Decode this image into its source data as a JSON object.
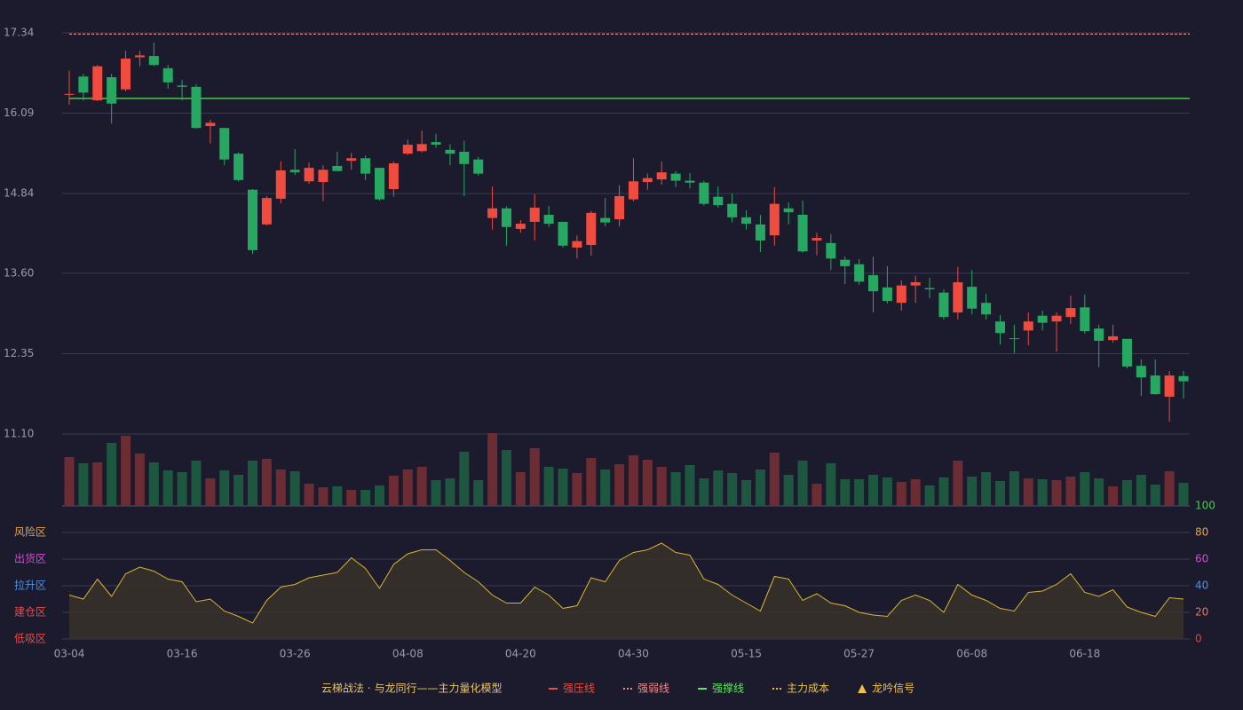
{
  "chart_data": {
    "type": "candlestick",
    "categories": [
      "03-04",
      null,
      null,
      null,
      null,
      null,
      null,
      null,
      "03-16",
      null,
      null,
      null,
      null,
      null,
      null,
      null,
      "03-26",
      null,
      null,
      null,
      null,
      null,
      null,
      null,
      "04-08",
      null,
      null,
      null,
      null,
      null,
      null,
      null,
      "04-20",
      null,
      null,
      null,
      null,
      null,
      null,
      null,
      "04-30",
      null,
      null,
      null,
      null,
      null,
      null,
      null,
      "05-15",
      null,
      null,
      null,
      null,
      null,
      null,
      null,
      "05-27",
      null,
      null,
      null,
      null,
      null,
      null,
      null,
      "06-08",
      null,
      null,
      null,
      null,
      null,
      null,
      null,
      "06-18",
      null,
      null,
      null,
      null,
      null,
      null,
      null
    ],
    "open": [
      16.38,
      16.66,
      16.29,
      16.65,
      16.46,
      16.96,
      16.98,
      16.79,
      16.52,
      16.5,
      15.89,
      15.86,
      15.46,
      14.9,
      14.36,
      14.76,
      15.21,
      15.03,
      15.02,
      15.27,
      15.35,
      15.39,
      15.24,
      14.91,
      15.46,
      15.5,
      15.64,
      15.52,
      15.49,
      15.37,
      14.46,
      14.61,
      14.29,
      14.4,
      14.51,
      14.4,
      14.0,
      14.04,
      14.46,
      14.44,
      14.75,
      15.02,
      15.06,
      15.15,
      15.04,
      15.01,
      14.79,
      14.68,
      14.47,
      14.36,
      14.19,
      14.61,
      14.51,
      14.11,
      14.07,
      13.81,
      13.74,
      13.57,
      13.38,
      13.14,
      13.41,
      13.37,
      13.3,
      12.99,
      13.39,
      13.14,
      12.85,
      12.59,
      12.71,
      12.94,
      12.85,
      12.92,
      13.07,
      12.74,
      12.56,
      12.58,
      12.16,
      12.01,
      11.68,
      12.0
    ],
    "high": [
      16.75,
      16.7,
      16.84,
      16.7,
      17.06,
      17.06,
      17.19,
      16.84,
      16.61,
      16.54,
      15.99,
      15.86,
      15.48,
      14.91,
      14.8,
      15.34,
      15.53,
      15.32,
      15.28,
      15.49,
      15.47,
      15.43,
      15.24,
      15.34,
      15.68,
      15.82,
      15.77,
      15.61,
      15.66,
      15.41,
      14.95,
      14.64,
      14.43,
      14.83,
      14.65,
      14.4,
      14.19,
      14.57,
      14.77,
      14.97,
      15.39,
      15.15,
      15.34,
      15.19,
      15.16,
      15.04,
      14.95,
      14.84,
      14.58,
      14.51,
      14.94,
      14.7,
      14.73,
      14.23,
      14.21,
      13.86,
      13.82,
      13.86,
      13.71,
      13.49,
      13.56,
      13.53,
      13.35,
      13.7,
      13.65,
      13.28,
      12.95,
      12.8,
      12.99,
      13.02,
      12.99,
      13.25,
      13.27,
      12.8,
      12.8,
      12.58,
      12.26,
      12.26,
      12.08,
      12.08
    ],
    "low": [
      16.22,
      16.29,
      16.28,
      15.93,
      16.43,
      16.82,
      16.82,
      16.47,
      16.29,
      15.85,
      15.62,
      15.28,
      15.03,
      13.9,
      14.34,
      14.69,
      15.13,
      14.99,
      14.72,
      15.19,
      15.21,
      15.05,
      14.73,
      14.79,
      15.44,
      15.48,
      15.55,
      15.28,
      14.8,
      15.12,
      14.28,
      14.03,
      14.23,
      14.11,
      14.32,
      14.0,
      13.83,
      13.87,
      14.33,
      14.33,
      14.72,
      14.9,
      14.98,
      14.94,
      14.92,
      14.65,
      14.62,
      14.39,
      14.28,
      13.93,
      14.03,
      14.36,
      13.92,
      13.88,
      13.65,
      13.43,
      13.42,
      12.99,
      13.13,
      13.02,
      13.14,
      13.21,
      12.88,
      12.88,
      12.96,
      12.88,
      12.49,
      12.36,
      12.48,
      12.71,
      12.38,
      12.81,
      12.66,
      12.14,
      12.52,
      12.12,
      11.69,
      11.71,
      11.29,
      11.65
    ],
    "close": [
      16.39,
      16.41,
      16.82,
      16.24,
      16.94,
      16.99,
      16.84,
      16.57,
      16.5,
      15.86,
      15.94,
      15.37,
      15.05,
      13.96,
      14.77,
      15.2,
      15.17,
      15.24,
      15.21,
      15.19,
      15.39,
      15.15,
      14.75,
      15.31,
      15.6,
      15.61,
      15.6,
      15.46,
      15.3,
      15.15,
      14.61,
      14.32,
      14.37,
      14.62,
      14.37,
      14.03,
      14.1,
      14.54,
      14.39,
      14.8,
      15.03,
      15.08,
      15.17,
      15.04,
      15.01,
      14.68,
      14.66,
      14.47,
      14.37,
      14.11,
      14.68,
      14.55,
      13.94,
      14.15,
      13.83,
      13.71,
      13.47,
      13.32,
      13.17,
      13.41,
      13.46,
      13.35,
      12.92,
      13.46,
      13.05,
      12.96,
      12.67,
      12.58,
      12.85,
      12.83,
      12.94,
      13.06,
      12.7,
      12.55,
      12.62,
      12.15,
      11.98,
      11.72,
      12.01,
      11.92
    ],
    "up_color": "#ef4b3f",
    "down_color": "#27a862",
    "ylim": [
      11.1,
      17.34
    ],
    "yticks": [
      17.34,
      16.09,
      14.84,
      {
        "value": 13.6,
        "label": "13.60"
      },
      12.35,
      {
        "value": 11.1,
        "label": "11.10"
      }
    ],
    "grid": true,
    "volume": [
      55,
      48,
      49,
      71,
      79,
      59,
      49,
      40,
      38,
      51,
      31,
      40,
      35,
      51,
      53,
      41,
      39,
      25,
      21,
      22,
      18,
      18,
      23,
      34,
      41,
      44,
      29,
      31,
      61,
      29,
      82,
      63,
      38,
      65,
      44,
      42,
      37,
      54,
      41,
      47,
      57,
      52,
      44,
      38,
      46,
      31,
      40,
      37,
      29,
      41,
      60,
      35,
      51,
      25,
      48,
      30,
      30,
      35,
      32,
      27,
      30,
      23,
      32,
      51,
      33,
      38,
      28,
      39,
      31,
      30,
      29,
      33,
      38,
      31,
      22,
      29,
      35,
      24,
      39,
      26
    ],
    "volume_up_color": "#6b2c33",
    "volume_down_color": "#1d5740",
    "oscillator": {
      "values": [
        33,
        30,
        45,
        32,
        49,
        54,
        51,
        45,
        43,
        28,
        30,
        21,
        17,
        12,
        29,
        39,
        41,
        46,
        48,
        50,
        61,
        53,
        38,
        56,
        64,
        67,
        67,
        59,
        50,
        43,
        33,
        27,
        27,
        39,
        33,
        23,
        25,
        46,
        43,
        59,
        65,
        67,
        72,
        65,
        63,
        45,
        41,
        33,
        27,
        21,
        47,
        45,
        29,
        34,
        27,
        25,
        20,
        18,
        17,
        29,
        33,
        29,
        20,
        41,
        33,
        29,
        23,
        21,
        35,
        36,
        41,
        49,
        35,
        32,
        37,
        24,
        20,
        17,
        31,
        30
      ],
      "color": "#d9b52c",
      "fill": "#3a3328",
      "ylim": [
        0,
        100
      ],
      "yticks": [
        100,
        80,
        60,
        40,
        20,
        0
      ],
      "ytick_colors": [
        "#3fd33f",
        "#e9a13a",
        "#d946d9",
        "#4a8fe8",
        "#e8744a",
        "#e84040"
      ],
      "zones": [
        {
          "name": "风险区",
          "value": 80,
          "color": "#e9a13a"
        },
        {
          "name": "出货区",
          "value": 60,
          "color": "#d946d9"
        },
        {
          "name": "拉升区",
          "value": 40,
          "color": "#4a8fe8"
        },
        {
          "name": "建仓区",
          "value": 20,
          "color": "#e84a4a"
        },
        {
          "name": "低吸区",
          "value": 0,
          "color": "#e84a4a"
        }
      ]
    },
    "legend_title": "云梯战法 · 与龙同行——主力量化模型",
    "legend": [
      {
        "name": "强压线",
        "color": "#f04a3e",
        "style": "solid"
      },
      {
        "name": "强弱线",
        "color": "#f08a8a",
        "style": "dashed",
        "value": 17.32
      },
      {
        "name": "强撑线",
        "color": "#5ce65c",
        "style": "solid",
        "value": 16.32
      },
      {
        "name": "主力成本",
        "color": "#f0c040",
        "style": "dashed"
      },
      {
        "name": "龙吟信号",
        "color": "#f0c040",
        "style": "triangle"
      }
    ]
  }
}
